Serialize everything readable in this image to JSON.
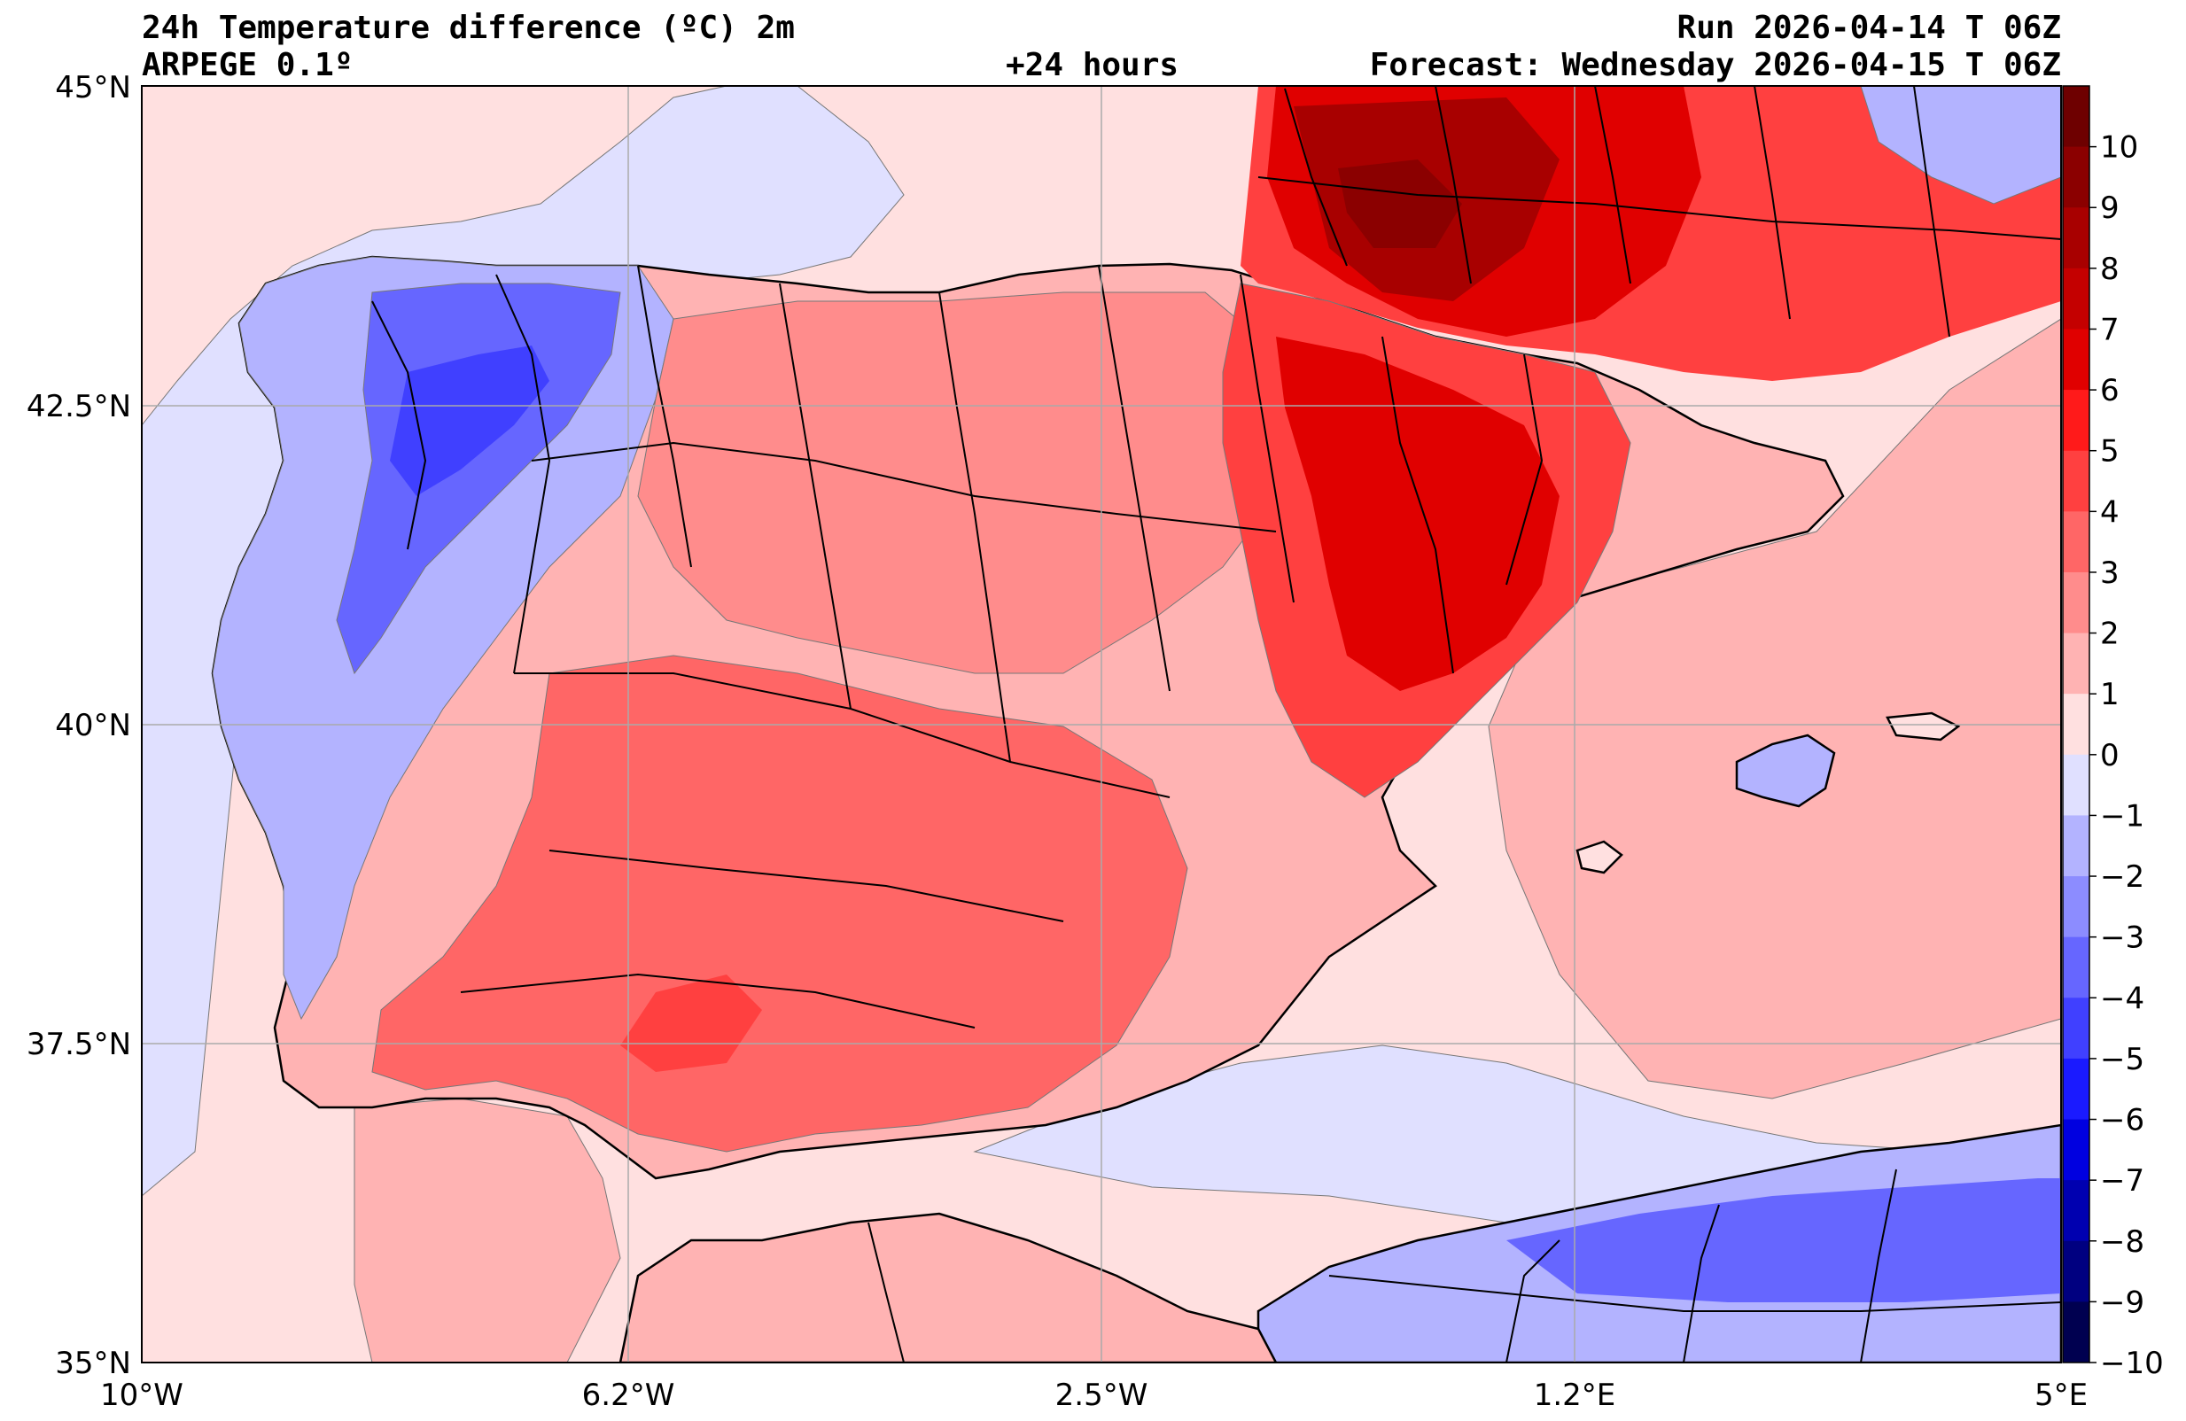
{
  "header": {
    "title": "24h Temperature difference (ºC) 2m",
    "model": "ARPEGE 0.1º",
    "lead": "+24 hours",
    "run": "Run 2026-04-14 T 06Z",
    "forecast": "Forecast: Wednesday 2026-04-15 T 06Z"
  },
  "axes": {
    "lat_labels": [
      "45°N",
      "42.5°N",
      "40°N",
      "37.5°N",
      "35°N"
    ],
    "lon_labels": [
      "10°W",
      "6.2°W",
      "2.5°W",
      "1.2°E",
      "5°E"
    ],
    "lat_range": [
      35,
      45
    ],
    "lon_range": [
      -10,
      5
    ]
  },
  "colorbar": {
    "labels": [
      "10",
      "9",
      "8",
      "7",
      "6",
      "5",
      "4",
      "3",
      "2",
      "1",
      "0",
      "−1",
      "−2",
      "−3",
      "−4",
      "−5",
      "−6",
      "−7",
      "−8",
      "−9",
      "−10"
    ],
    "colors": [
      "#6e0000",
      "#8b0000",
      "#a80000",
      "#c40000",
      "#e00000",
      "#ff1a1a",
      "#ff4040",
      "#ff6666",
      "#ff8c8c",
      "#ffb3b3",
      "#ffe0e0",
      "#e0e0ff",
      "#b3b3ff",
      "#8c8cff",
      "#6666ff",
      "#4040ff",
      "#1a1aff",
      "#0000e0",
      "#0000b0",
      "#000080",
      "#000050"
    ]
  },
  "colors": {
    "sea_base": "#ffe0e0",
    "land_base": "#ffb8b8"
  }
}
